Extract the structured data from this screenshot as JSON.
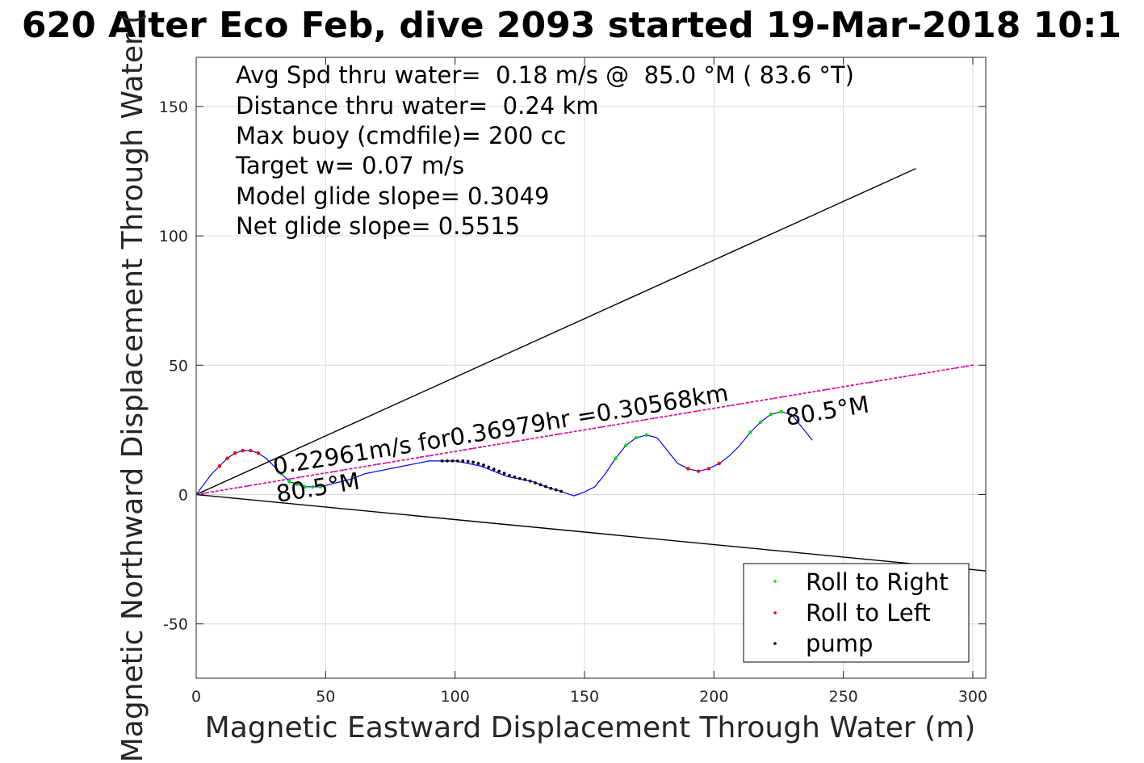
{
  "title": "620 Alter Eco Feb, dive 2093 started 19-Mar-2018 10:1",
  "chart_data": {
    "type": "scatter",
    "title": "620 Alter Eco Feb, dive 2093 started 19-Mar-2018 10:1",
    "xlabel": "Magnetic Eastward Displacement Through Water (m)",
    "ylabel": "Magnetic Northward Displacement Through Water (",
    "xlim": [
      0,
      305
    ],
    "ylim": [
      -71,
      169
    ],
    "xticks": [
      0,
      50,
      100,
      150,
      200,
      250,
      300
    ],
    "yticks": [
      -50,
      0,
      50,
      100,
      150
    ],
    "grid": true,
    "legend_position": "bottom-right",
    "legend": [
      "Roll to Right",
      "Roll to Left",
      "pump"
    ],
    "info_lines": [
      "Avg Spd thru water=  0.18 m/s @  85.0 °M ( 83.6 °T)",
      "Distance thru water=  0.24 km",
      "Max buoy (cmdfile)= 200 cc",
      "Target w= 0.07 m/s",
      "Model glide slope= 0.3049",
      "Net glide slope= 0.5515"
    ],
    "annotations": {
      "speed_label": "0.22961m/s for0.36979hr =0.30568km",
      "heading_start": "80.5°M",
      "heading_end": "80.5°M"
    },
    "series": [
      {
        "role": "track",
        "color": "#0000ff",
        "x": [
          0,
          3,
          6,
          9,
          12,
          15,
          18,
          21,
          24,
          27,
          30,
          33,
          36,
          39,
          42,
          45,
          48,
          52,
          56,
          60,
          65,
          70,
          75,
          80,
          85,
          90,
          95,
          100,
          105,
          110,
          115,
          120,
          125,
          130,
          135,
          140,
          146,
          150,
          154,
          158,
          162,
          166,
          170,
          174,
          178,
          182,
          186,
          190,
          194,
          198,
          202,
          206,
          210,
          214,
          218,
          222,
          226,
          230,
          234,
          238
        ],
        "y": [
          0,
          4,
          8,
          11,
          14,
          16,
          17,
          17,
          16,
          14,
          11,
          8,
          5,
          4,
          3,
          3,
          3,
          4,
          5,
          6,
          8,
          9,
          10,
          11,
          12,
          13,
          13,
          13,
          12,
          11,
          9,
          7,
          6,
          5,
          3,
          1.5,
          -0.5,
          1,
          3,
          8,
          14,
          19,
          22,
          23,
          22,
          17,
          12,
          10,
          9,
          10,
          12,
          15,
          19,
          24,
          28,
          31,
          32,
          31,
          26,
          21
        ]
      },
      {
        "role": "net_track",
        "color": "#cc00cc",
        "x": [
          0,
          300
        ],
        "y": [
          0,
          50
        ]
      },
      {
        "role": "envelope_upper",
        "color": "#000000",
        "x": [
          0,
          278
        ],
        "y": [
          0,
          126
        ]
      },
      {
        "role": "envelope_lower",
        "color": "#000000",
        "x": [
          0,
          305
        ],
        "y": [
          0,
          -29.5
        ]
      }
    ],
    "points": {
      "roll_right": {
        "name": "Roll to Right",
        "color": "#00dd00",
        "x": [
          33,
          36,
          39,
          42,
          45,
          48,
          162,
          166,
          170,
          174,
          214,
          218,
          222,
          226
        ],
        "y": [
          8,
          5,
          4,
          3,
          3,
          3,
          14,
          19,
          22,
          23,
          24,
          28,
          31,
          32
        ]
      },
      "roll_left": {
        "name": "Roll to Left",
        "color": "#ff0000",
        "x": [
          9,
          12,
          15,
          18,
          21,
          24,
          190,
          194,
          198,
          202
        ],
        "y": [
          11,
          14,
          16,
          17,
          17,
          16,
          10,
          9,
          10,
          12
        ]
      },
      "pump": {
        "name": "pump",
        "color": "#000000",
        "x": [
          95,
          97,
          99,
          101,
          103,
          105,
          107,
          109,
          111,
          113,
          115,
          117,
          119,
          121,
          123,
          125,
          127,
          129,
          131,
          133,
          135,
          137,
          139,
          141
        ],
        "y": [
          13,
          13,
          13,
          13,
          13,
          12.8,
          12.5,
          12,
          11.4,
          10.6,
          9.8,
          9,
          8.2,
          7.4,
          6.8,
          6.2,
          5.8,
          5.2,
          4.5,
          3.8,
          3.1,
          2.4,
          1.8,
          1.2
        ]
      }
    }
  }
}
